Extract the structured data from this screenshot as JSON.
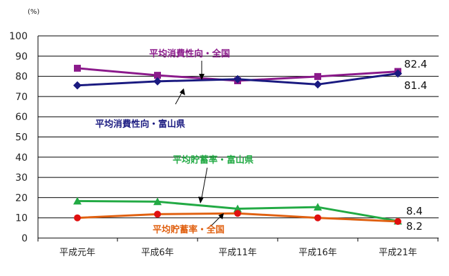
{
  "chart_data": {
    "type": "line",
    "unit_label": "(%)",
    "categories": [
      "平成元年",
      "平成6年",
      "平成11年",
      "平成16年",
      "平成21年"
    ],
    "ylim": [
      0,
      100
    ],
    "yticks": [
      0,
      10,
      20,
      30,
      40,
      50,
      60,
      70,
      80,
      90,
      100
    ],
    "grid": true,
    "series": [
      {
        "name": "平均消費性向・全国",
        "values": [
          84.0,
          80.5,
          77.8,
          79.9,
          82.4
        ],
        "color": "#8B1A8B",
        "marker": "square",
        "end_label": "82.4"
      },
      {
        "name": "平均消費性向・富山県",
        "values": [
          75.5,
          77.5,
          78.6,
          76.0,
          81.4
        ],
        "color": "#1A1A80",
        "marker": "diamond",
        "end_label": "81.4"
      },
      {
        "name": "平均貯蓄率・富山県",
        "values": [
          18.3,
          18.0,
          14.5,
          15.3,
          8.4
        ],
        "color": "#22AA44",
        "marker": "triangle",
        "end_label": "8.4"
      },
      {
        "name": "平均貯蓄率・全国",
        "values": [
          10.0,
          11.8,
          12.2,
          10.0,
          8.2
        ],
        "color": "#E06010",
        "marker": "circle",
        "marker_color": "#E01010",
        "end_label": "8.2"
      }
    ]
  }
}
